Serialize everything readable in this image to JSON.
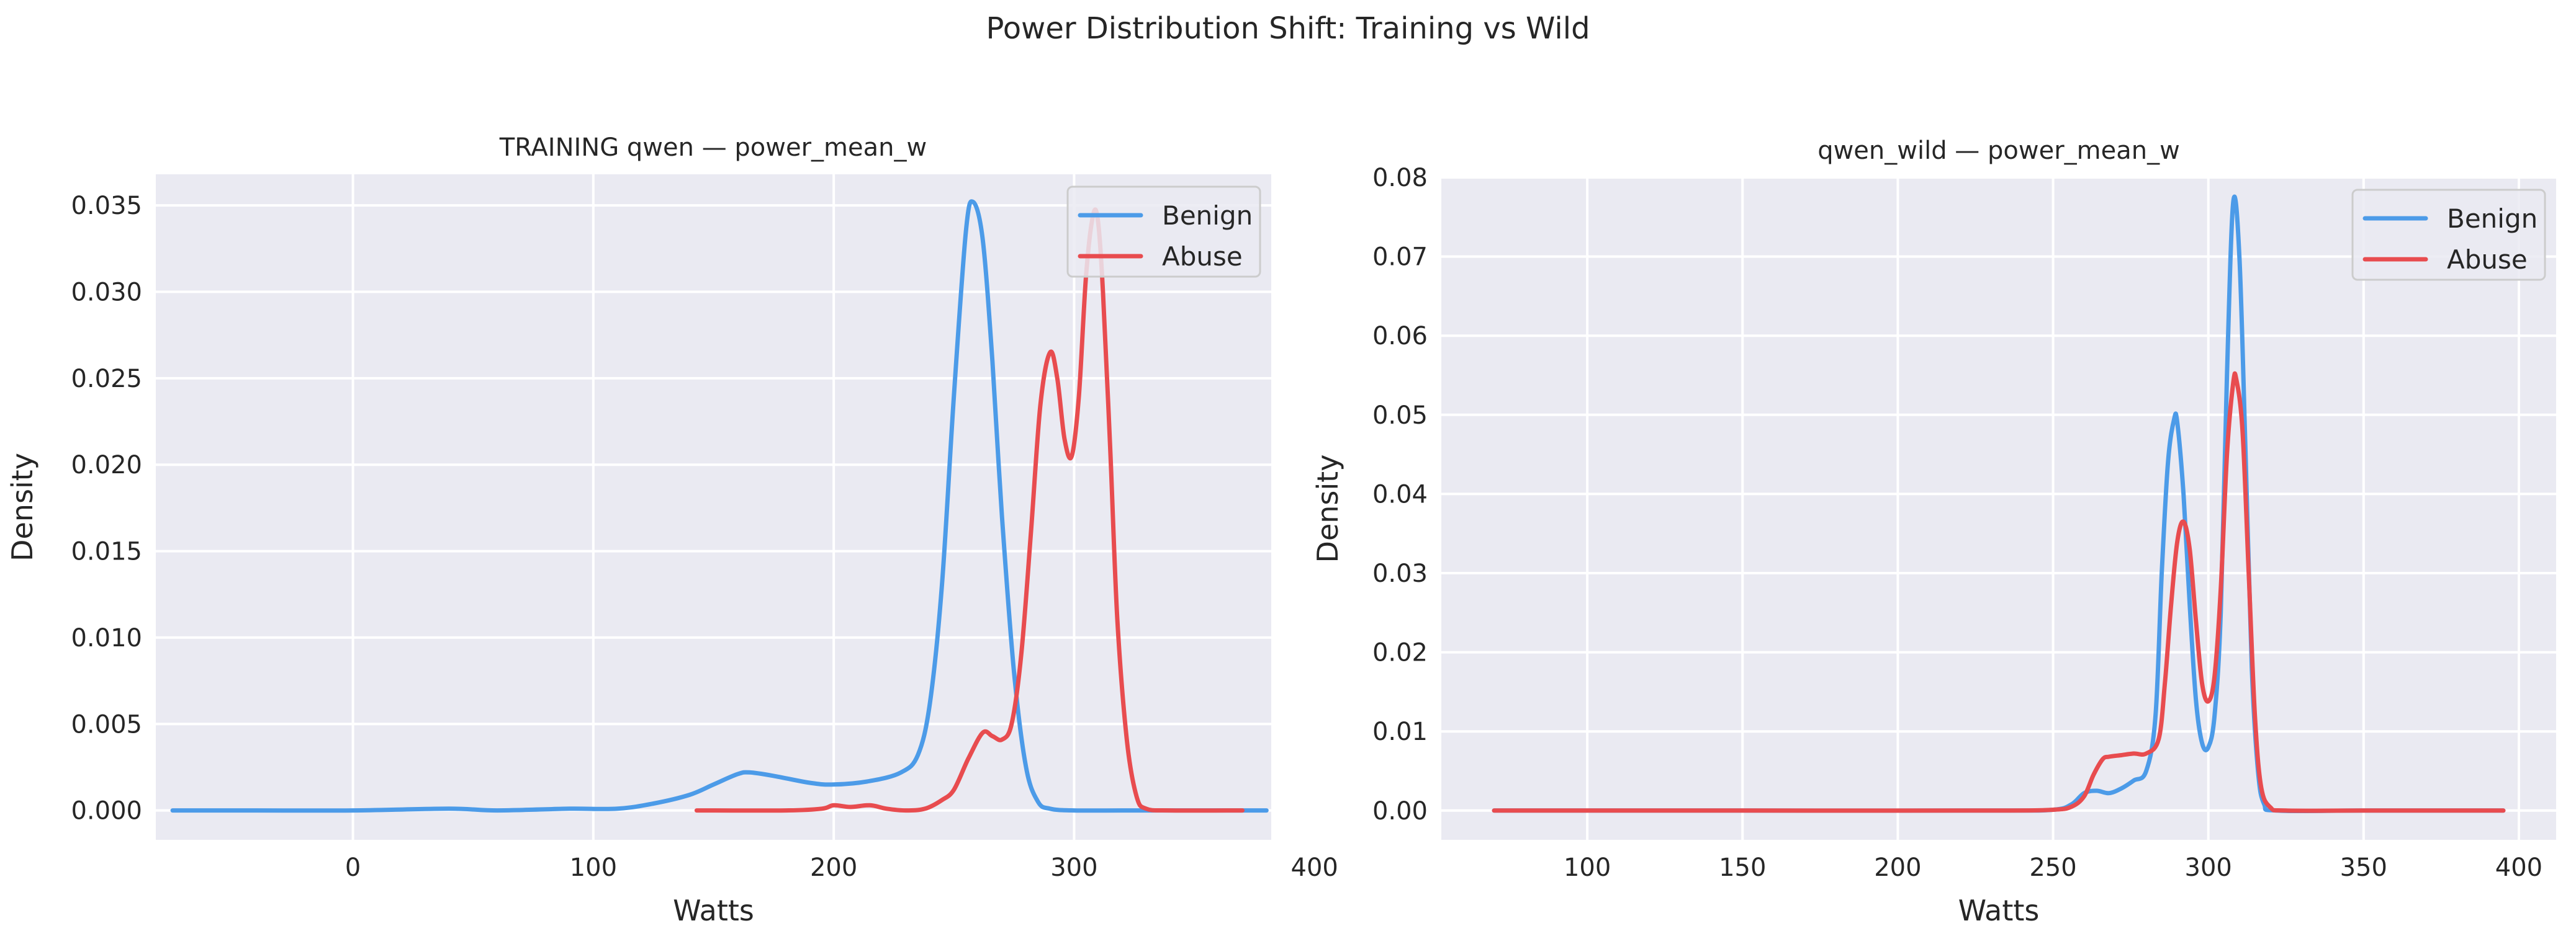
{
  "figure": {
    "suptitle": "Power Distribution Shift: Training vs Wild"
  },
  "colors": {
    "benign": "#4C9BE8",
    "abuse": "#E84C4F",
    "plot_bg": "#EAEAF2",
    "grid": "#FFFFFF"
  },
  "chart_data": [
    {
      "type": "line",
      "subtype": "kde",
      "title": "TRAINING qwen — power_mean_w",
      "xlabel": "Watts",
      "ylabel": "Density",
      "xlim": [
        -82,
        382
      ],
      "ylim": [
        -0.0017,
        0.0368
      ],
      "xticks": [
        0,
        100,
        200,
        300,
        400
      ],
      "xtick_labels": [
        "0",
        "100",
        "200",
        "300",
        "400"
      ],
      "yticks": [
        0.0,
        0.005,
        0.01,
        0.015,
        0.02,
        0.025,
        0.03,
        0.035
      ],
      "ytick_labels": [
        "0.000",
        "0.005",
        "0.010",
        "0.015",
        "0.020",
        "0.025",
        "0.030",
        "0.035"
      ],
      "grid": true,
      "legend": {
        "position": "upper right",
        "entries": [
          "Benign",
          "Abuse"
        ]
      },
      "series": [
        {
          "name": "Benign",
          "color": "#4C9BE8",
          "x": [
            -75,
            -40,
            0,
            40,
            60,
            90,
            110,
            125,
            140,
            150,
            160,
            165,
            175,
            190,
            200,
            215,
            228,
            235,
            240,
            245,
            250,
            255,
            258,
            262,
            266,
            270,
            275,
            280,
            285,
            290,
            300,
            320,
            350,
            380
          ],
          "y": [
            0.0,
            0.0,
            0.0,
            0.0001,
            0.0,
            0.0001,
            0.0001,
            0.0004,
            0.0009,
            0.0015,
            0.0021,
            0.0022,
            0.002,
            0.0016,
            0.0015,
            0.0017,
            0.0022,
            0.0032,
            0.0062,
            0.013,
            0.024,
            0.0335,
            0.0352,
            0.033,
            0.026,
            0.017,
            0.008,
            0.0025,
            0.0005,
            0.0001,
            0.0,
            0.0,
            0.0,
            0.0
          ]
        },
        {
          "name": "Abuse",
          "color": "#E84C4F",
          "x": [
            143,
            180,
            195,
            200,
            207,
            215,
            222,
            230,
            238,
            245,
            250,
            256,
            262,
            266,
            270,
            274,
            278,
            282,
            286,
            290,
            293,
            296,
            299,
            302,
            305,
            308,
            310,
            312,
            315,
            318,
            322,
            326,
            330,
            340,
            370
          ],
          "y": [
            0.0,
            0.0,
            0.0001,
            0.0003,
            0.0002,
            0.0003,
            0.0001,
            0.0,
            0.0001,
            0.0006,
            0.0012,
            0.003,
            0.0045,
            0.0043,
            0.0041,
            0.005,
            0.009,
            0.016,
            0.0235,
            0.0265,
            0.025,
            0.0215,
            0.0205,
            0.024,
            0.031,
            0.0345,
            0.034,
            0.03,
            0.021,
            0.011,
            0.004,
            0.0008,
            0.0001,
            0.0,
            0.0
          ]
        }
      ]
    },
    {
      "type": "line",
      "subtype": "kde",
      "title": "qwen_wild — power_mean_w",
      "xlabel": "Watts",
      "ylabel": "Density",
      "xlim": [
        53,
        412
      ],
      "ylim": [
        -0.0037,
        0.08
      ],
      "xticks": [
        100,
        150,
        200,
        250,
        300,
        350,
        400
      ],
      "xtick_labels": [
        "100",
        "150",
        "200",
        "250",
        "300",
        "350",
        "400"
      ],
      "yticks": [
        0.0,
        0.01,
        0.02,
        0.03,
        0.04,
        0.05,
        0.06,
        0.07,
        0.08
      ],
      "ytick_labels": [
        "0.00",
        "0.01",
        "0.02",
        "0.03",
        "0.04",
        "0.05",
        "0.06",
        "0.07",
        "0.08"
      ],
      "grid": true,
      "legend": {
        "position": "upper right",
        "entries": [
          "Benign",
          "Abuse"
        ]
      },
      "series": [
        {
          "name": "Benign",
          "color": "#4C9BE8",
          "x": [
            70,
            150,
            230,
            250,
            256,
            260,
            264,
            268,
            272,
            276,
            280,
            283,
            285,
            287,
            289,
            290,
            292,
            294,
            296,
            298,
            300,
            302,
            304,
            306,
            308,
            310,
            312,
            314,
            316,
            318,
            322,
            350,
            395
          ],
          "y": [
            0.0,
            0.0,
            0.0,
            0.0001,
            0.0008,
            0.0022,
            0.0025,
            0.0022,
            0.0028,
            0.0038,
            0.005,
            0.012,
            0.03,
            0.044,
            0.0495,
            0.049,
            0.04,
            0.026,
            0.014,
            0.0085,
            0.008,
            0.012,
            0.025,
            0.055,
            0.0768,
            0.07,
            0.045,
            0.018,
            0.005,
            0.0008,
            0.0,
            0.0,
            0.0
          ]
        },
        {
          "name": "Abuse",
          "color": "#E84C4F",
          "x": [
            70,
            150,
            230,
            250,
            256,
            260,
            263,
            266,
            268,
            272,
            276,
            280,
            284,
            286,
            288,
            290,
            292,
            294,
            296,
            298,
            300,
            302,
            304,
            306,
            308,
            309,
            311,
            313,
            315,
            317,
            320,
            325,
            350,
            395
          ],
          "y": [
            0.0,
            0.0,
            0.0,
            0.0001,
            0.0005,
            0.0018,
            0.0045,
            0.0065,
            0.0068,
            0.007,
            0.0072,
            0.0072,
            0.009,
            0.016,
            0.026,
            0.034,
            0.0365,
            0.033,
            0.024,
            0.016,
            0.0138,
            0.017,
            0.028,
            0.045,
            0.054,
            0.0545,
            0.048,
            0.03,
            0.012,
            0.003,
            0.0004,
            0.0,
            0.0,
            0.0
          ]
        }
      ]
    }
  ]
}
